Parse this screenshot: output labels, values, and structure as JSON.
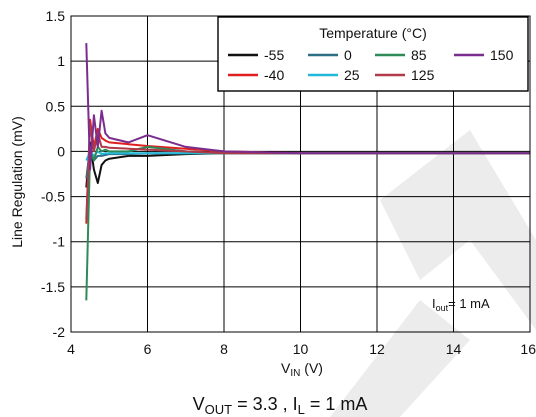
{
  "chart_data": {
    "type": "line",
    "xlabel": {
      "main": "V",
      "sub": "IN",
      "unit": " (V)"
    },
    "ylabel": "Line Regulation (mV)",
    "xlim": [
      4,
      16
    ],
    "ylim": [
      -2,
      1.5
    ],
    "xticks": [
      "4",
      "6",
      "8",
      "10",
      "12",
      "14",
      "16"
    ],
    "yticks": [
      "1.5",
      "1",
      "0.5",
      "0",
      "-0.5",
      "-1",
      "-1.5",
      "-2"
    ],
    "grid": true,
    "legend": {
      "title": "Temperature (°C)",
      "placement": "top-right"
    },
    "annotation": {
      "text": "= 1 mA",
      "main": "I",
      "sub": "out"
    },
    "caption": {
      "v": "V",
      "vsub": "OUT",
      "mid": " = 3.3 , I",
      "isub": "L",
      "end": " = 1 mA"
    },
    "series": [
      {
        "name": "-55",
        "color": "#111111",
        "x": [
          4.4,
          4.5,
          4.6,
          4.7,
          4.8,
          4.9,
          5.0,
          5.5,
          6,
          7,
          8,
          10,
          12,
          16
        ],
        "y": [
          -0.4,
          0.1,
          -0.2,
          -0.35,
          -0.15,
          -0.1,
          -0.08,
          -0.05,
          -0.05,
          -0.03,
          -0.02,
          -0.02,
          -0.02,
          -0.02
        ]
      },
      {
        "name": "-40",
        "color": "#e02020",
        "x": [
          4.4,
          4.5,
          4.6,
          4.7,
          4.8,
          4.9,
          5.0,
          5.5,
          6,
          7,
          8,
          10,
          12,
          16
        ],
        "y": [
          -0.8,
          0.35,
          0.05,
          0.25,
          0.15,
          0.12,
          0.1,
          0.08,
          0.06,
          0.03,
          0.0,
          -0.02,
          -0.02,
          -0.02
        ]
      },
      {
        "name": "0",
        "color": "#2f6f86",
        "x": [
          4.4,
          4.5,
          4.6,
          4.7,
          4.8,
          4.9,
          5.0,
          5.5,
          6,
          7,
          8,
          10,
          12,
          16
        ],
        "y": [
          -0.3,
          0.05,
          -0.1,
          -0.05,
          -0.05,
          -0.04,
          -0.03,
          -0.03,
          -0.02,
          -0.02,
          -0.02,
          -0.02,
          -0.02,
          -0.02
        ]
      },
      {
        "name": "25",
        "color": "#22b8d8",
        "x": [
          4.4,
          4.5,
          4.6,
          4.7,
          4.8,
          4.9,
          5.0,
          5.5,
          6,
          7,
          8,
          10,
          12,
          16
        ],
        "y": [
          -0.1,
          0.0,
          -0.05,
          0.0,
          -0.03,
          -0.02,
          -0.02,
          -0.02,
          -0.02,
          -0.02,
          -0.02,
          -0.02,
          -0.02,
          -0.02
        ]
      },
      {
        "name": "85",
        "color": "#2e8b57",
        "x": [
          4.4,
          4.5,
          4.6,
          4.7,
          4.8,
          4.9,
          5.0,
          5.5,
          6,
          7,
          8,
          10,
          12,
          16
        ],
        "y": [
          -1.65,
          0.0,
          -0.1,
          0.05,
          0.0,
          0.02,
          0.0,
          0.0,
          0.05,
          0.0,
          -0.02,
          -0.02,
          -0.02,
          -0.02
        ]
      },
      {
        "name": "125",
        "color": "#b03a48",
        "x": [
          4.4,
          4.5,
          4.6,
          4.7,
          4.8,
          4.9,
          5.0,
          5.5,
          6,
          7,
          8,
          10,
          12,
          16
        ],
        "y": [
          -0.75,
          0.3,
          0.0,
          0.2,
          0.05,
          0.05,
          0.04,
          0.03,
          0.02,
          0.0,
          -0.02,
          -0.02,
          -0.02,
          -0.02
        ]
      },
      {
        "name": "150",
        "color": "#7b2d8e",
        "x": [
          4.4,
          4.5,
          4.6,
          4.7,
          4.8,
          4.9,
          5.0,
          5.5,
          6,
          7,
          8,
          10,
          12,
          16
        ],
        "y": [
          1.2,
          -0.2,
          0.4,
          0.05,
          0.45,
          0.2,
          0.15,
          0.1,
          0.18,
          0.05,
          0.0,
          -0.02,
          -0.02,
          -0.02
        ]
      }
    ]
  }
}
